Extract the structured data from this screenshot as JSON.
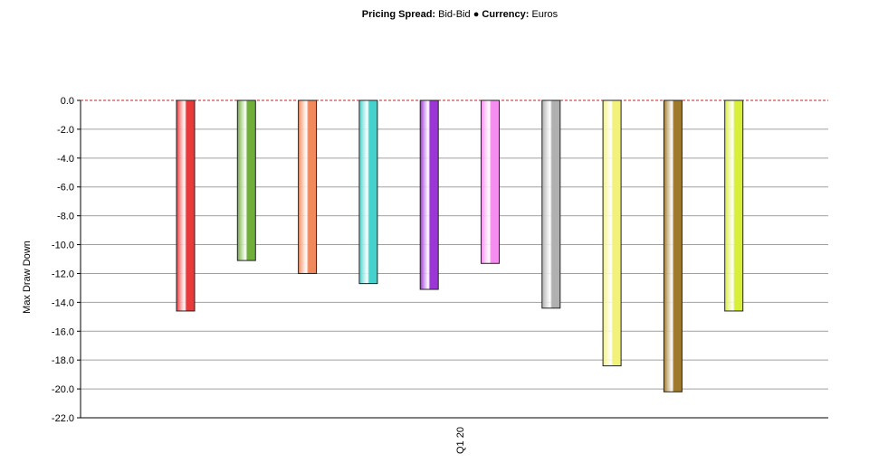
{
  "title": {
    "spread_label": "Pricing Spread:",
    "spread_value": "Bid-Bid",
    "separator": "●",
    "currency_label": "Currency:",
    "currency_value": "Euros"
  },
  "chart_data": {
    "type": "bar",
    "categories": [
      "Q1 20"
    ],
    "ylabel": "Max Draw Down",
    "xlabel": "",
    "ylim": [
      -22.0,
      0.0
    ],
    "yticks": [
      "0.0",
      "-2.0",
      "-4.0",
      "-6.0",
      "-8.0",
      "-10.0",
      "-12.0",
      "-14.0",
      "-16.0",
      "-18.0",
      "-20.0",
      "-22.0"
    ],
    "grid": true,
    "zero_line": "dashed-red",
    "series": [
      {
        "values": [
          -14.6
        ],
        "color": "#e8393b"
      },
      {
        "values": [
          -11.1
        ],
        "color": "#6fae3a"
      },
      {
        "values": [
          -12.0
        ],
        "color": "#f08a5d"
      },
      {
        "values": [
          -12.7
        ],
        "color": "#45d2cc"
      },
      {
        "values": [
          -13.1
        ],
        "color": "#9b35d6"
      },
      {
        "values": [
          -11.3
        ],
        "color": "#f58cf0"
      },
      {
        "values": [
          -14.4
        ],
        "color": "#b0b0b0"
      },
      {
        "values": [
          -18.4
        ],
        "color": "#f2f27a"
      },
      {
        "values": [
          -20.2
        ],
        "color": "#a07a2c"
      },
      {
        "values": [
          -14.6
        ],
        "color": "#d8ef3a"
      }
    ]
  }
}
